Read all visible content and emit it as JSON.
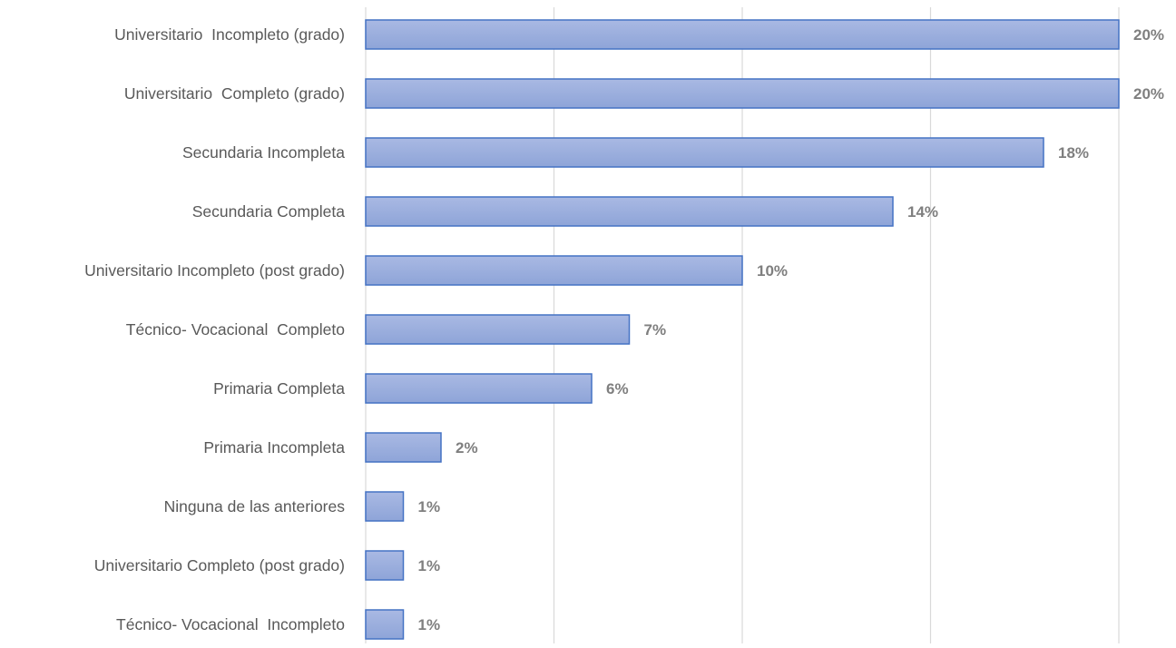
{
  "chart_data": {
    "type": "bar",
    "orientation": "horizontal",
    "categories": [
      "Universitario  Incompleto (grado)",
      "Universitario  Completo (grado)",
      "Secundaria Incompleta",
      "Secundaria Completa",
      "Universitario Incompleto (post grado)",
      "Técnico- Vocacional  Completo",
      "Primaria Completa",
      "Primaria Incompleta",
      "Ninguna de las anteriores",
      "Universitario Completo (post grado)",
      "Técnico- Vocacional  Incompleto"
    ],
    "values": [
      20,
      20,
      18,
      14,
      10,
      7,
      6,
      2,
      1,
      1,
      1
    ],
    "value_labels": [
      "20%",
      "20%",
      "18%",
      "14%",
      "10%",
      "7%",
      "6%",
      "2%",
      "1%",
      "1%",
      "1%"
    ],
    "value_unit": "%",
    "xlim": [
      0,
      20
    ],
    "x_gridlines": [
      0,
      5,
      10,
      15,
      20
    ],
    "x_tick_labels_shown": false,
    "grid": true,
    "legend": "none",
    "title": "",
    "xlabel": "",
    "ylabel": "",
    "colors": {
      "bar_fill_top": "#a9b9e3",
      "bar_fill_bottom": "#8ea4d8",
      "bar_stroke": "#4472c4",
      "gridline": "#d9d9d9",
      "category_text": "#595959",
      "value_text": "#7f7f7f"
    }
  }
}
